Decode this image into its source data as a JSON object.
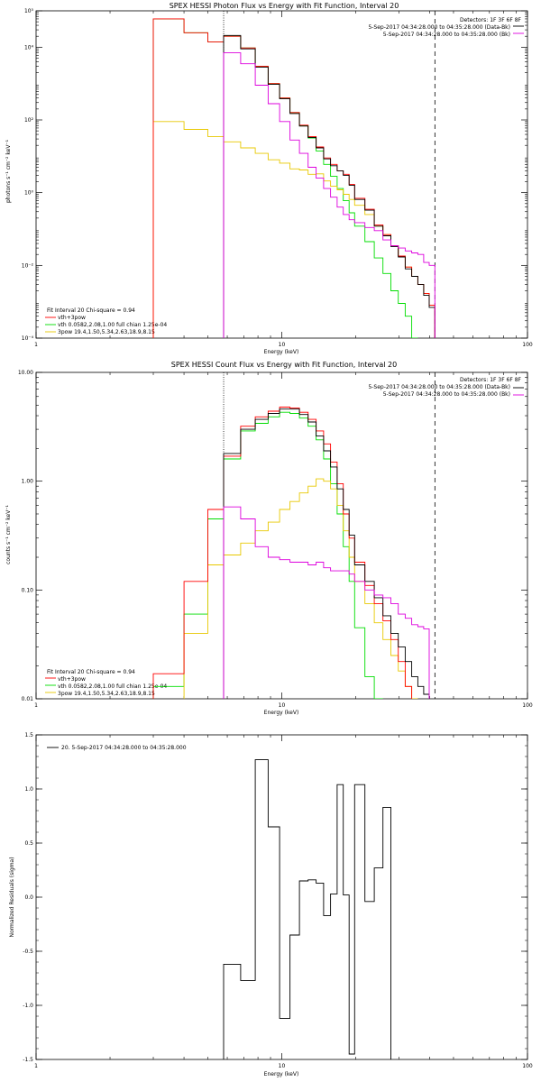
{
  "colors": {
    "model": "#000000",
    "total": "#ff0000",
    "vth": "#00dd00",
    "pow": "#e8c800",
    "bk": "#dd00dd"
  },
  "chart_data": [
    {
      "type": "line",
      "name": "photon",
      "title": "SPEX HESSI Photon Flux vs Energy with Fit Function, Interval 20",
      "xlabel": "Energy (keV)",
      "ylabel": "photons s⁻¹ cm⁻² keV⁻¹",
      "xlog": true,
      "ylog": true,
      "xlim": [
        1,
        100
      ],
      "ylim": [
        0.0001,
        100000
      ],
      "x_ticks": [
        {
          "v": 1,
          "t": "1"
        },
        {
          "v": 10,
          "t": "10"
        },
        {
          "v": 100,
          "t": "100"
        }
      ],
      "y_ticks": [
        {
          "v": 0.0001,
          "t": "10⁻⁴"
        },
        {
          "v": 0.01,
          "t": "10⁻²"
        },
        {
          "v": 1,
          "t": "10⁰"
        },
        {
          "v": 100,
          "t": "10²"
        },
        {
          "v": 10000,
          "t": "10⁴"
        },
        {
          "v": 100000,
          "t": "10⁵"
        }
      ],
      "vlines": [
        {
          "x": 5.8,
          "style": "dotted"
        },
        {
          "x": 42,
          "style": "dashed"
        }
      ],
      "legend_right": {
        "detectors": "Detectors: 1F 3F 6F 8F",
        "entries": [
          {
            "text": "5-Sep-2017 04:34:28.000 to 04:35:28.000 (Data-Bk)",
            "color_key": "model"
          },
          {
            "text": "5-Sep-2017 04:34:28.000 to 04:35:28.000 (Bk)",
            "color_key": "bk"
          }
        ]
      },
      "legend_left": {
        "header": "Fit Interval 20   Chi-square = 0.94",
        "entries": [
          {
            "text": "vth+3pow",
            "color_key": "total"
          },
          {
            "text": "vth 0.0582,2.08,1.00  full chian 1.25e-04",
            "color_key": "vth"
          },
          {
            "text": "3pow 19.4,1.50,5.34,2.63,18.9,8.15",
            "color_key": "pow"
          }
        ]
      },
      "edges": [
        3,
        4,
        5,
        5.8,
        6.8,
        7.8,
        8.8,
        9.8,
        10.8,
        11.8,
        12.8,
        13.8,
        14.8,
        15.8,
        16.8,
        17.8,
        18.8,
        19.8,
        21.8,
        23.8,
        25.8,
        27.8,
        29.8,
        31.8,
        33.8,
        35.8,
        37.8,
        39.8,
        42.0
      ],
      "series": [
        {
          "color_key": "vth",
          "start_edge": 0,
          "values": [
            60000,
            25000,
            14000,
            20000,
            9500,
            3000,
            1000,
            400,
            160,
            70,
            32,
            14,
            6,
            2.8,
            1.3,
            0.6,
            0.28,
            0.12,
            0.045,
            0.016,
            0.006,
            0.002,
            0.0009,
            0.0004,
            0.0001
          ]
        },
        {
          "color_key": "pow",
          "start_edge": 0,
          "values": [
            90,
            55,
            35,
            25,
            17,
            12,
            8,
            6.5,
            4.5,
            4.2,
            3.2,
            3.3,
            2.1,
            1.5,
            1.2,
            0.9,
            0.65,
            0.45,
            0.25,
            0.12,
            0.07,
            0.035,
            0.018,
            0.009,
            0.005,
            0.003,
            0.0017,
            0.0008
          ]
        },
        {
          "color_key": "total",
          "start_edge": 0,
          "values": [
            60000,
            25000,
            14000,
            20000,
            9500,
            3000,
            1000,
            400,
            160,
            72,
            35,
            18,
            9,
            6,
            4,
            3.2,
            1.7,
            0.7,
            0.35,
            0.13,
            0.07,
            0.035,
            0.018,
            0.009,
            0.005,
            0.003,
            0.0017,
            0.0008
          ]
        },
        {
          "color_key": "model",
          "start_edge": 3,
          "values": [
            21000,
            9000,
            2800,
            950,
            380,
            150,
            68,
            33,
            17,
            8.5,
            5.5,
            4.0,
            3.0,
            1.6,
            0.65,
            0.33,
            0.12,
            0.065,
            0.033,
            0.017,
            0.008,
            0.005,
            0.003,
            0.0015,
            0.0007
          ]
        },
        {
          "color_key": "bk",
          "start_edge": 3,
          "values": [
            7000,
            3500,
            900,
            280,
            90,
            28,
            12,
            5,
            2.5,
            1.3,
            0.75,
            0.4,
            0.25,
            0.18,
            0.15,
            0.11,
            0.09,
            0.05,
            0.035,
            0.03,
            0.025,
            0.022,
            0.02,
            0.012,
            0.01
          ]
        }
      ]
    },
    {
      "type": "line",
      "name": "count",
      "title": "SPEX HESSI Count Flux vs Energy with Fit Function, Interval 20",
      "xlabel": "Energy (keV)",
      "ylabel": "counts s⁻¹ cm⁻² keV⁻¹",
      "xlog": true,
      "ylog": true,
      "xlim": [
        1,
        100
      ],
      "ylim": [
        0.01,
        10
      ],
      "x_ticks": [
        {
          "v": 1,
          "t": "1"
        },
        {
          "v": 10,
          "t": "10"
        },
        {
          "v": 100,
          "t": "100"
        }
      ],
      "y_ticks": [
        {
          "v": 0.01,
          "t": "0.01"
        },
        {
          "v": 0.1,
          "t": "0.10"
        },
        {
          "v": 1,
          "t": "1.00"
        },
        {
          "v": 10,
          "t": "10.00"
        }
      ],
      "vlines": [
        {
          "x": 5.8,
          "style": "dotted"
        },
        {
          "x": 42,
          "style": "dashed"
        }
      ],
      "legend_right": {
        "detectors": "Detectors: 1F 3F 6F 8F",
        "entries": [
          {
            "text": "5-Sep-2017 04:34:28.000 to 04:35:28.000 (Data-Bk)",
            "color_key": "model"
          },
          {
            "text": "5-Sep-2017 04:34:28.000 to 04:35:28.000 (Bk)",
            "color_key": "bk"
          }
        ]
      },
      "legend_left": {
        "header": "Fit Interval 20   Chi-square = 0.94",
        "entries": [
          {
            "text": "vth+3pow",
            "color_key": "total"
          },
          {
            "text": "vth 0.0582,2.08,1.00  full chian 1.25e-04",
            "color_key": "vth"
          },
          {
            "text": "3pow 19.4,1.50,5.34,2.63,18.9,8.15",
            "color_key": "pow"
          }
        ]
      },
      "edges": [
        3,
        4,
        5,
        5.8,
        6.8,
        7.8,
        8.8,
        9.8,
        10.8,
        11.8,
        12.8,
        13.8,
        14.8,
        15.8,
        16.8,
        17.8,
        18.8,
        19.8,
        21.8,
        23.8,
        25.8,
        27.8,
        29.8,
        31.8,
        33.8,
        35.8,
        37.8,
        39.8,
        42.0
      ],
      "series": [
        {
          "color_key": "vth",
          "start_edge": 0,
          "values": [
            0.013,
            0.06,
            0.45,
            1.6,
            2.9,
            3.4,
            3.9,
            4.3,
            4.2,
            3.8,
            3.2,
            2.4,
            1.6,
            0.95,
            0.5,
            0.25,
            0.12,
            0.045,
            0.016,
            0.005
          ]
        },
        {
          "color_key": "pow",
          "start_edge": 1,
          "values": [
            0.04,
            0.17,
            0.21,
            0.27,
            0.35,
            0.42,
            0.55,
            0.65,
            0.78,
            0.9,
            1.05,
            1.0,
            0.85,
            0.6,
            0.35,
            0.2,
            0.12,
            0.075,
            0.05,
            0.035,
            0.025,
            0.018,
            0.013,
            0.01
          ]
        },
        {
          "color_key": "total",
          "start_edge": 0,
          "values": [
            0.017,
            0.12,
            0.55,
            1.7,
            3.2,
            3.9,
            4.4,
            4.8,
            4.7,
            4.3,
            3.7,
            2.9,
            2.2,
            1.5,
            0.95,
            0.5,
            0.3,
            0.18,
            0.11,
            0.075,
            0.052,
            0.035,
            0.022,
            0.013
          ]
        },
        {
          "color_key": "model",
          "start_edge": 3,
          "values": [
            1.8,
            3.0,
            3.7,
            4.2,
            4.6,
            4.6,
            4.1,
            3.5,
            2.6,
            1.9,
            1.35,
            0.85,
            0.55,
            0.32,
            0.17,
            0.12,
            0.085,
            0.058,
            0.04,
            0.03,
            0.022,
            0.016,
            0.013,
            0.011
          ]
        },
        {
          "color_key": "bk",
          "start_edge": 3,
          "values": [
            0.58,
            0.45,
            0.25,
            0.2,
            0.19,
            0.18,
            0.18,
            0.17,
            0.18,
            0.16,
            0.15,
            0.15,
            0.15,
            0.14,
            0.12,
            0.1,
            0.09,
            0.085,
            0.075,
            0.06,
            0.055,
            0.048,
            0.046,
            0.044
          ]
        }
      ]
    },
    {
      "type": "line",
      "name": "residuals",
      "xlabel": "Energy (keV)",
      "ylabel": "Normalized Residuals (sigma)",
      "xlog": true,
      "ylog": false,
      "xlim": [
        1,
        100
      ],
      "ylim": [
        -1.5,
        1.5
      ],
      "x_ticks": [
        {
          "v": 1,
          "t": "1"
        },
        {
          "v": 10,
          "t": "10"
        },
        {
          "v": 100,
          "t": "100"
        }
      ],
      "y_ticks": [
        {
          "v": -1.5,
          "t": "-1.5"
        },
        {
          "v": -1.0,
          "t": "-1.0"
        },
        {
          "v": -0.5,
          "t": "-0.5"
        },
        {
          "v": 0.0,
          "t": "0.0"
        },
        {
          "v": 0.5,
          "t": "0.5"
        },
        {
          "v": 1.0,
          "t": "1.0"
        },
        {
          "v": 1.5,
          "t": "1.5"
        }
      ],
      "legend_entry": {
        "text": "20.  5-Sep-2017 04:34:28.000 to 04:35:28.000",
        "color_key": "model"
      },
      "edges": [
        5.8,
        6.8,
        7.8,
        8.8,
        9.8,
        10.8,
        11.8,
        12.8,
        13.8,
        14.8,
        15.8,
        16.8,
        17.8,
        18.8,
        19.8,
        21.8,
        23.8,
        25.8,
        27.8,
        29.8,
        31.8,
        33.8,
        35.8,
        37.8,
        39.8,
        42.0
      ],
      "series": [
        {
          "color_key": "model",
          "start_edge": 0,
          "values": [
            -0.62,
            -0.77,
            1.27,
            0.65,
            -1.12,
            -0.35,
            0.15,
            0.16,
            0.13,
            -0.17,
            0.03,
            1.04,
            0.02,
            -1.45,
            1.04,
            -0.04,
            0.27,
            0.83
          ]
        }
      ]
    }
  ]
}
